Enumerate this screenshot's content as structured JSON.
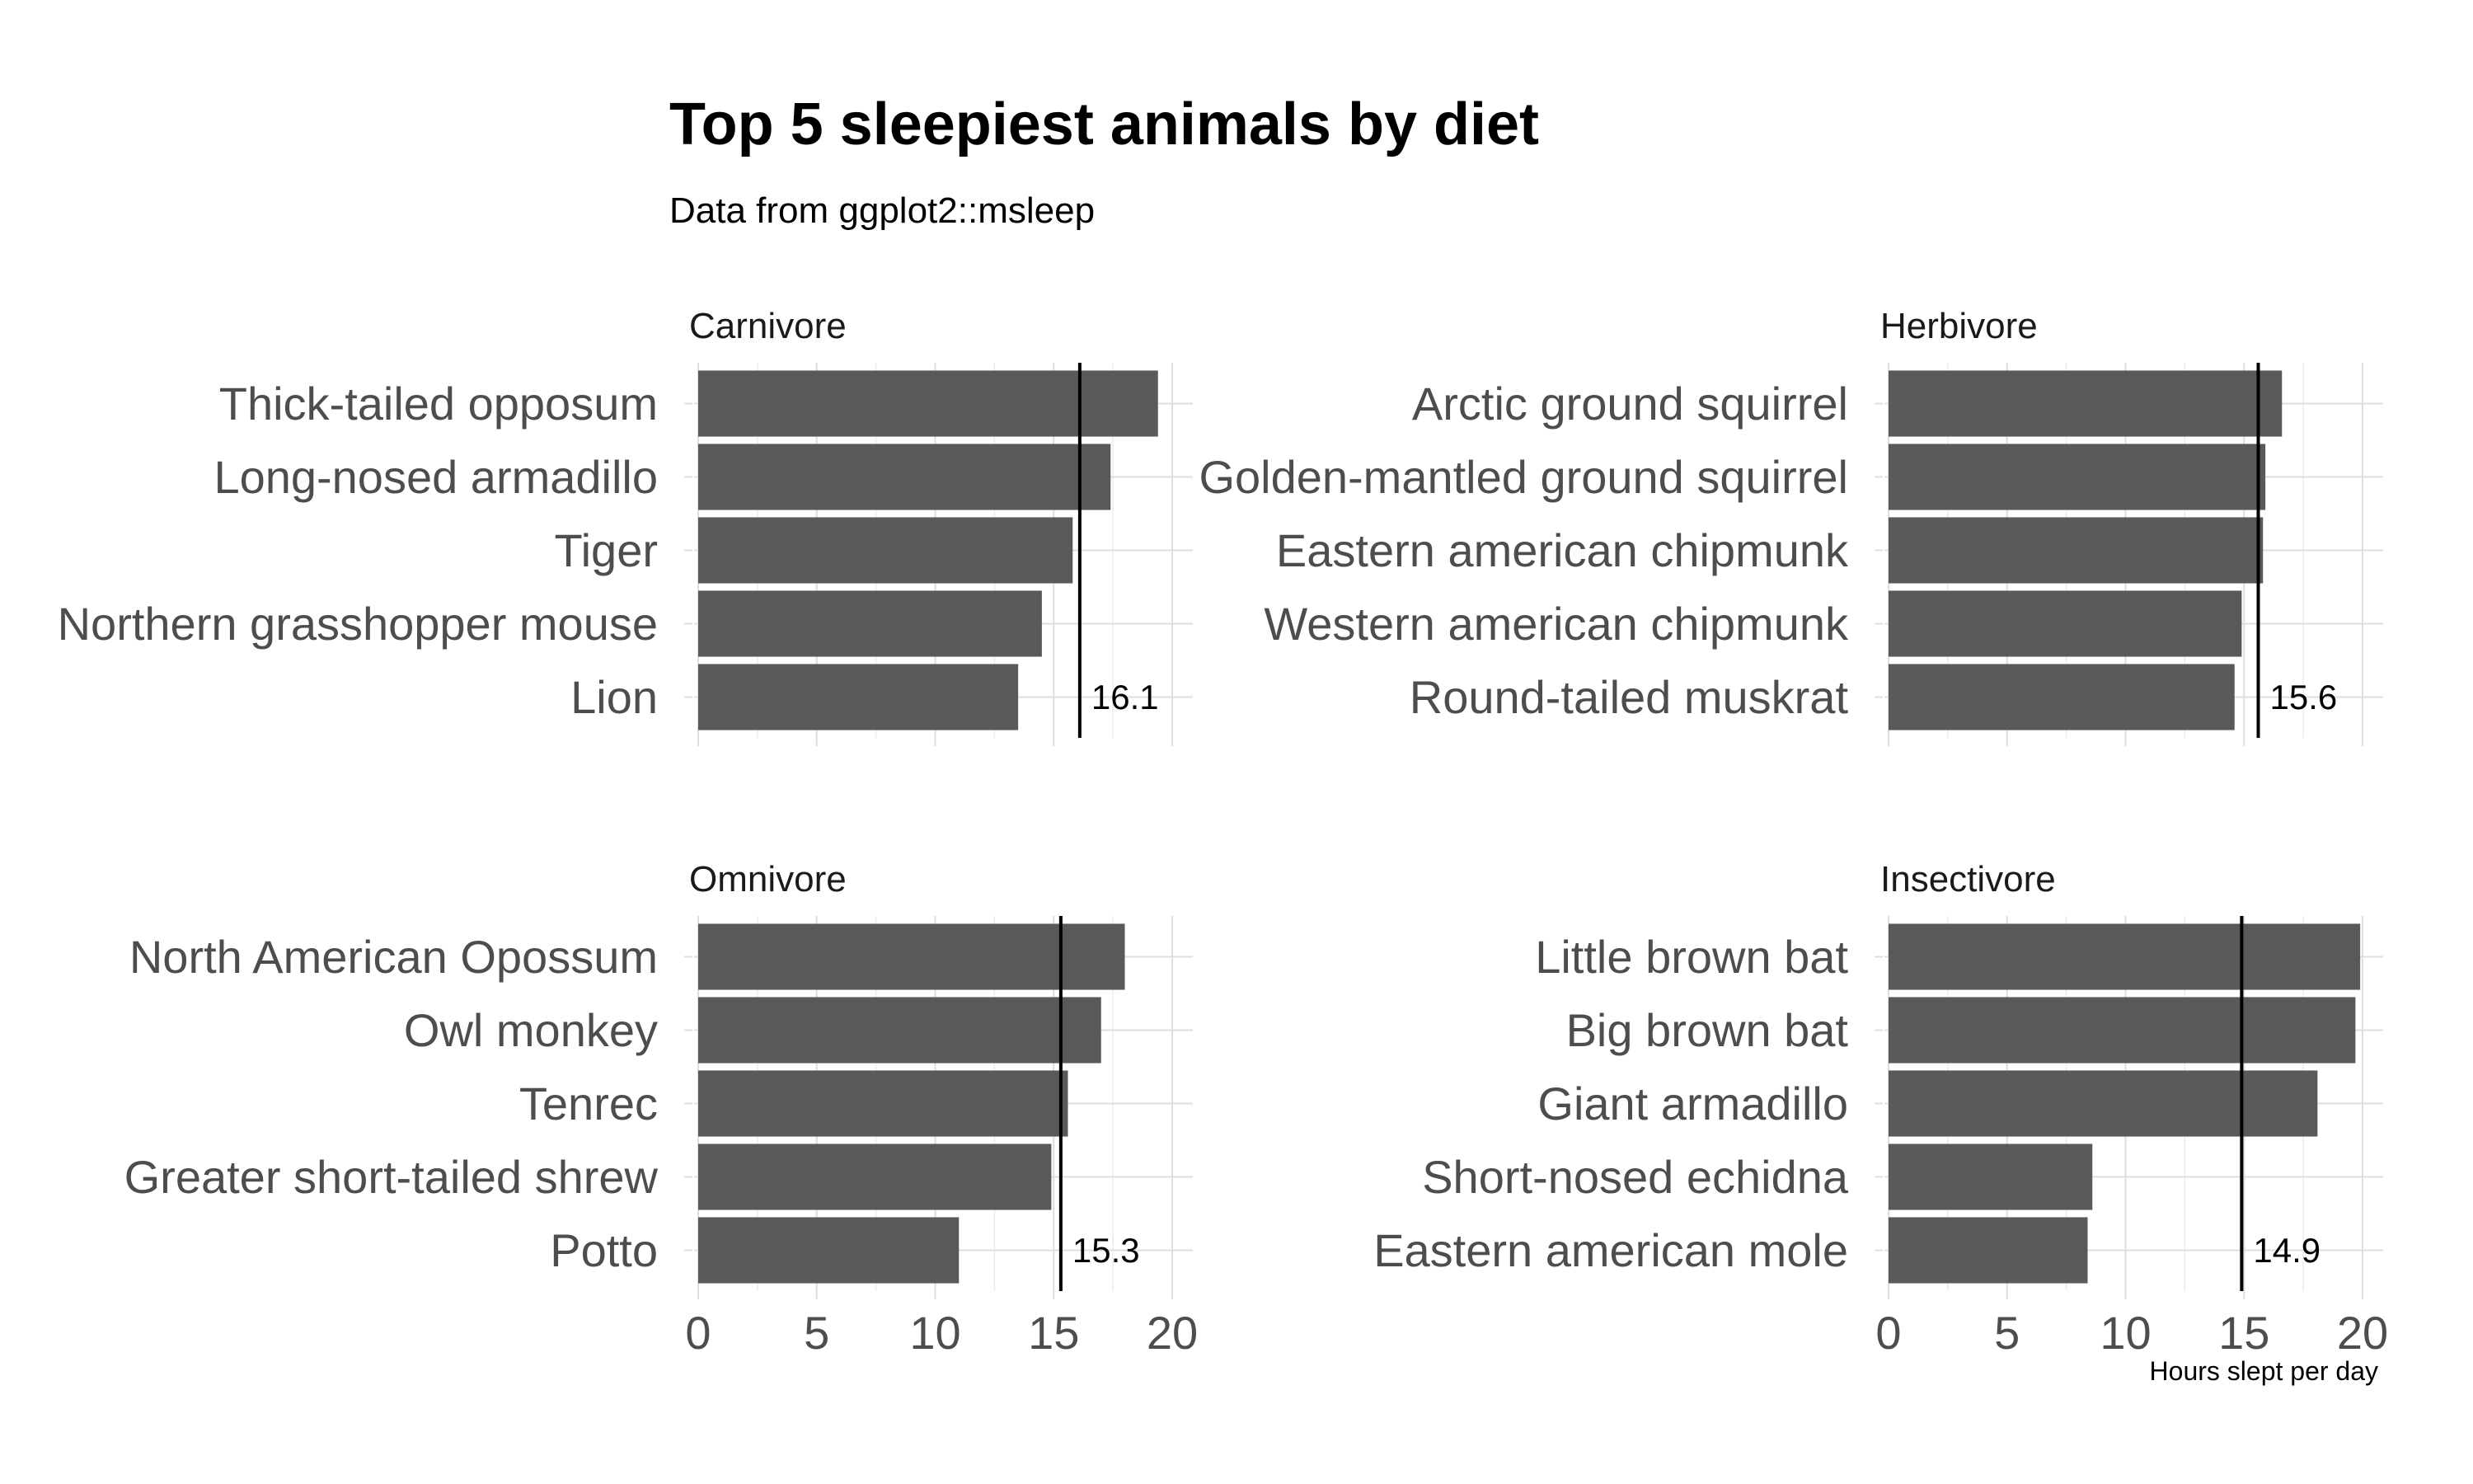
{
  "title": "Top 5 sleepiest animals by diet",
  "subtitle": "Data from ggplot2::msleep",
  "x_axis_label": "Hours slept per day",
  "colors": {
    "bar": "#595959",
    "mean_line": "#000000",
    "grid": "#dedede",
    "tick_text": "#4d4d4d"
  },
  "chart_data": [
    {
      "type": "bar",
      "orientation": "horizontal",
      "panel": "Carnivore",
      "categories": [
        "Thick-tailed opposum",
        "Long-nosed armadillo",
        "Tiger",
        "Northern grasshopper mouse",
        "Lion"
      ],
      "values": [
        19.4,
        17.4,
        15.8,
        14.5,
        13.5
      ],
      "mean_line": 16.1,
      "mean_label": "16.1",
      "xlim": [
        0,
        20
      ],
      "x_ticks": [
        0,
        5,
        10,
        15,
        20
      ],
      "x_tick_labels": [],
      "xlabel": "",
      "grid": true
    },
    {
      "type": "bar",
      "orientation": "horizontal",
      "panel": "Herbivore",
      "categories": [
        "Arctic ground squirrel",
        "Golden-mantled ground squirrel",
        "Eastern american chipmunk",
        "Western american chipmunk",
        "Round-tailed muskrat"
      ],
      "values": [
        16.6,
        15.9,
        15.8,
        14.9,
        14.6
      ],
      "mean_line": 15.6,
      "mean_label": "15.6",
      "xlim": [
        0,
        20
      ],
      "x_ticks": [
        0,
        5,
        10,
        15,
        20
      ],
      "x_tick_labels": [],
      "xlabel": "",
      "grid": true
    },
    {
      "type": "bar",
      "orientation": "horizontal",
      "panel": "Omnivore",
      "categories": [
        "North American Opossum",
        "Owl monkey",
        "Tenrec",
        "Greater short-tailed shrew",
        "Potto"
      ],
      "values": [
        18.0,
        17.0,
        15.6,
        14.9,
        11.0
      ],
      "mean_line": 15.3,
      "mean_label": "15.3",
      "xlim": [
        0,
        20
      ],
      "x_ticks": [
        0,
        5,
        10,
        15,
        20
      ],
      "x_tick_labels": [
        "0",
        "5",
        "10",
        "15",
        "20"
      ],
      "xlabel": "",
      "grid": true
    },
    {
      "type": "bar",
      "orientation": "horizontal",
      "panel": "Insectivore",
      "categories": [
        "Little brown bat",
        "Big brown bat",
        "Giant armadillo",
        "Short-nosed echidna",
        "Eastern american mole"
      ],
      "values": [
        19.9,
        19.7,
        18.1,
        8.6,
        8.4
      ],
      "mean_line": 14.9,
      "mean_label": "14.9",
      "xlim": [
        0,
        20
      ],
      "x_ticks": [
        0,
        5,
        10,
        15,
        20
      ],
      "x_tick_labels": [
        "0",
        "5",
        "10",
        "15",
        "20"
      ],
      "xlabel": "Hours slept per day",
      "grid": true
    }
  ]
}
